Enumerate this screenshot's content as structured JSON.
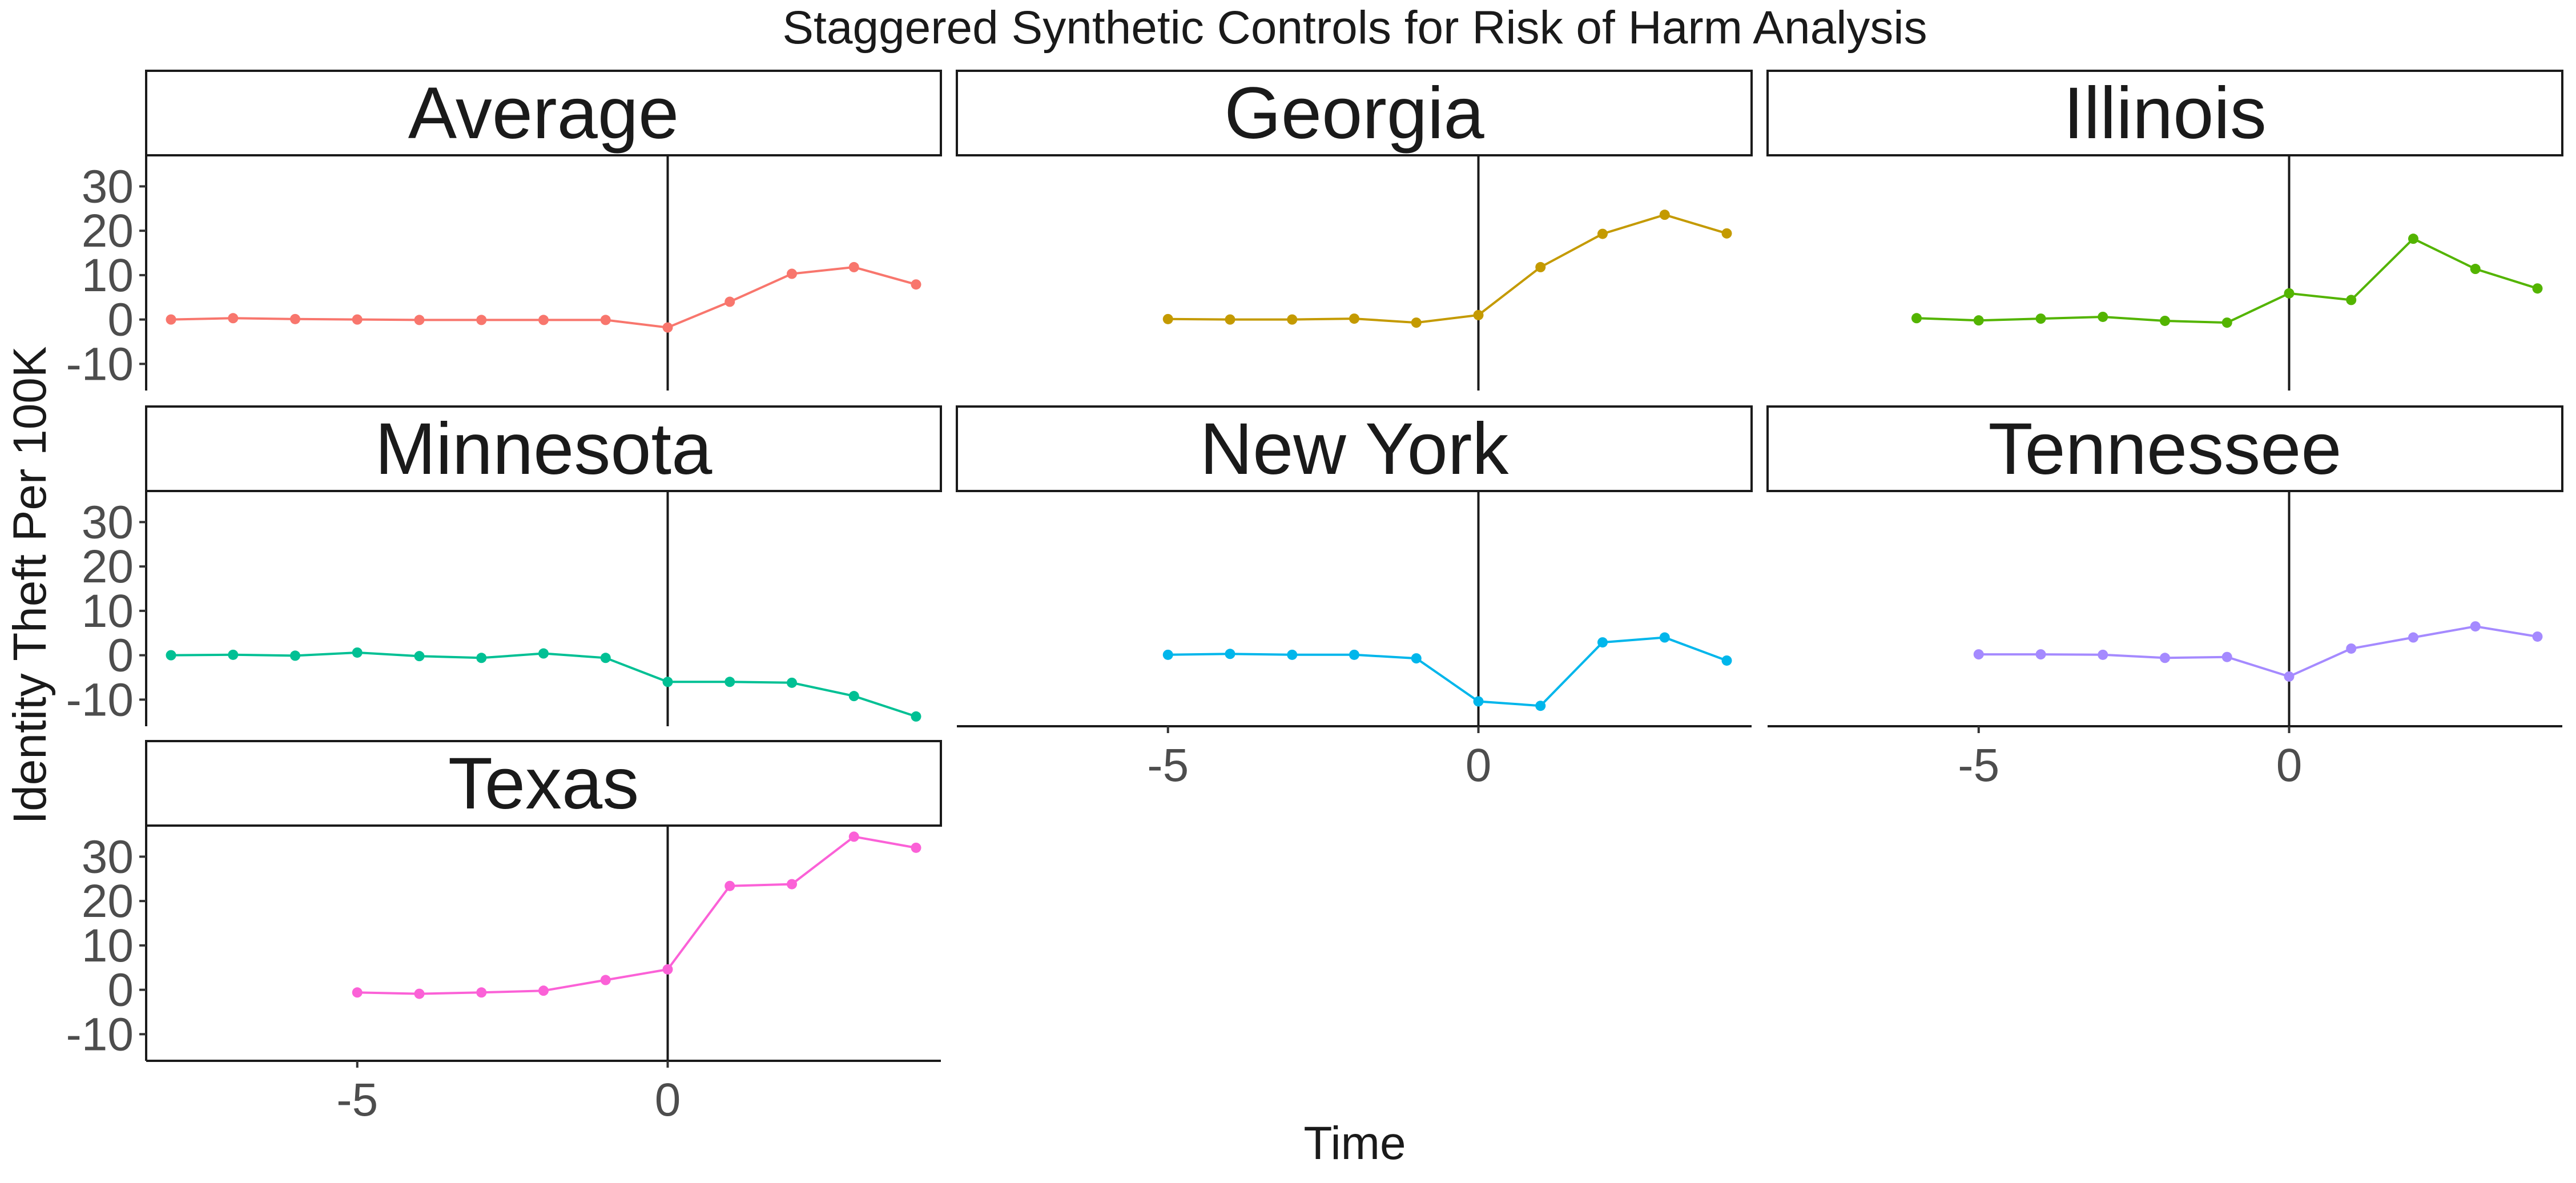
{
  "chart_data": {
    "type": "line",
    "title": "Staggered Synthetic Controls for Risk of Harm Analysis",
    "xlabel": "Time",
    "ylabel": "Identity Theft Per 100K",
    "xlim": [
      -8.4,
      4.4
    ],
    "ylim": [
      -16,
      37
    ],
    "x_ticks": [
      -5,
      0
    ],
    "x_tick_labels": [
      "-5",
      "0"
    ],
    "y_ticks": [
      -10,
      0,
      10,
      20,
      30
    ],
    "y_tick_labels": [
      "-10",
      "0",
      "10",
      "20",
      "30"
    ],
    "reference_line_x": 0,
    "grid": false,
    "legend": "none",
    "panels": [
      {
        "name": "Average",
        "color": "#F8766D",
        "x": [
          -8,
          -7,
          -6,
          -5,
          -4,
          -3,
          -2,
          -1,
          0,
          1,
          2,
          3,
          4
        ],
        "y": [
          0.0,
          0.3,
          0.1,
          0.0,
          -0.1,
          -0.1,
          -0.1,
          -0.1,
          -1.8,
          4.0,
          10.3,
          11.8,
          7.9
        ]
      },
      {
        "name": "Georgia",
        "color": "#C49A00",
        "x": [
          -5,
          -4,
          -3,
          -2,
          -1,
          0,
          1,
          2,
          3,
          4
        ],
        "y": [
          0.1,
          0.0,
          0.0,
          0.2,
          -0.7,
          1.0,
          11.8,
          19.3,
          23.6,
          19.4
        ]
      },
      {
        "name": "Illinois",
        "color": "#53B400",
        "x": [
          -6,
          -5,
          -4,
          -3,
          -2,
          -1,
          0,
          1,
          2,
          3,
          4
        ],
        "y": [
          0.3,
          -0.2,
          0.2,
          0.6,
          -0.3,
          -0.7,
          5.9,
          4.4,
          18.2,
          11.4,
          7.0
        ]
      },
      {
        "name": "Minnesota",
        "color": "#00C094",
        "x": [
          -8,
          -7,
          -6,
          -5,
          -4,
          -3,
          -2,
          -1,
          0,
          1,
          2,
          3,
          4
        ],
        "y": [
          0.0,
          0.1,
          -0.1,
          0.6,
          -0.2,
          -0.6,
          0.4,
          -0.6,
          -6.0,
          -6.0,
          -6.2,
          -9.2,
          -13.8
        ]
      },
      {
        "name": "New York",
        "color": "#00B6EB",
        "x": [
          -5,
          -4,
          -3,
          -2,
          -1,
          0,
          1,
          2,
          3,
          4
        ],
        "y": [
          0.1,
          0.3,
          0.1,
          0.1,
          -0.7,
          -10.4,
          -11.4,
          2.9,
          4.0,
          -1.2
        ]
      },
      {
        "name": "Tennessee",
        "color": "#A58AFF",
        "x": [
          -5,
          -4,
          -3,
          -2,
          -1,
          0,
          1,
          2,
          3,
          4
        ],
        "y": [
          0.2,
          0.2,
          0.1,
          -0.6,
          -0.4,
          -4.8,
          1.5,
          4.0,
          6.5,
          4.2
        ]
      },
      {
        "name": "Texas",
        "color": "#FB61D7",
        "x": [
          -5,
          -4,
          -3,
          -2,
          -1,
          0,
          1,
          2,
          3,
          4
        ],
        "y": [
          -0.6,
          -0.9,
          -0.6,
          -0.2,
          2.2,
          4.6,
          23.4,
          23.8,
          34.5,
          32.0
        ]
      }
    ]
  }
}
